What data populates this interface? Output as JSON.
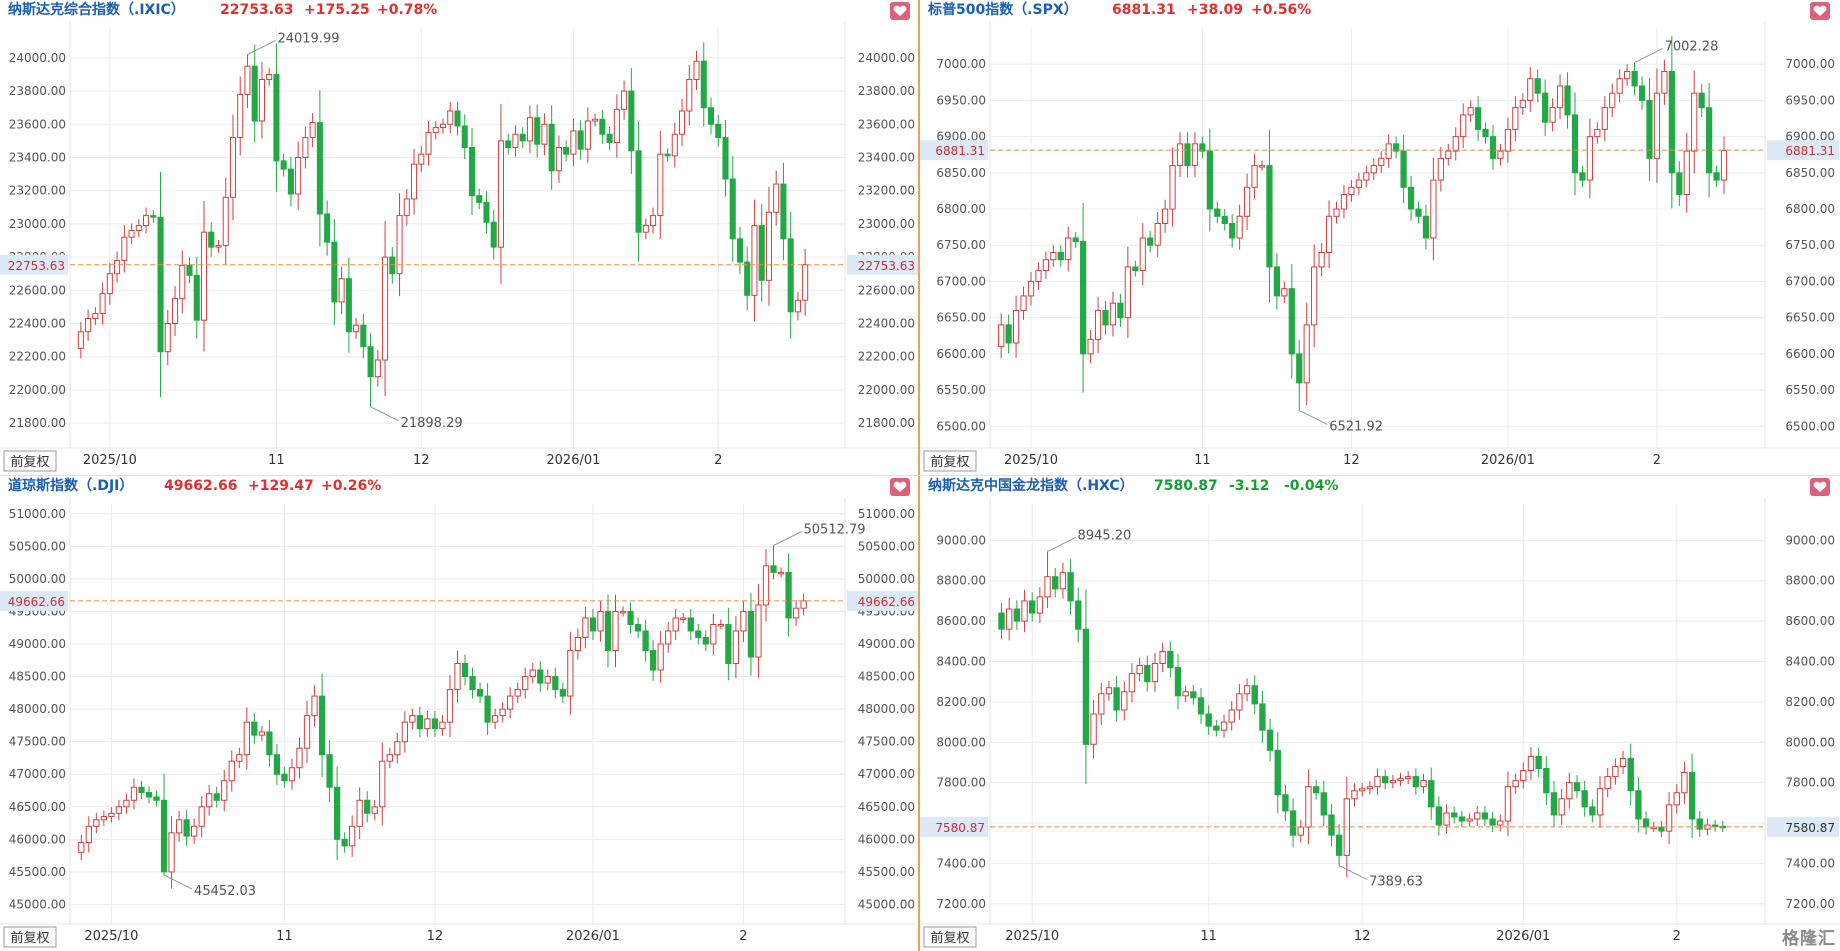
{
  "logo_text": "格隆汇",
  "fq_button": "前复权",
  "colors": {
    "up": "#e03030",
    "down": "#15a035",
    "up_body": "#d07070",
    "down_body": "#22a845",
    "grid": "#ececec",
    "ref_line": "#e09050",
    "name": "#1a5fb4"
  },
  "chart_data": [
    {
      "type": "candlestick",
      "name": "纳斯达克综合指数（.IXIC）",
      "last": "22753.63",
      "change": "+175.25",
      "change_pct": "+0.78%",
      "direction": "up",
      "ylim": [
        21650,
        24180
      ],
      "yticks": [
        21800,
        22000,
        22200,
        22400,
        22600,
        22800,
        23000,
        23200,
        23400,
        23600,
        23800,
        24000
      ],
      "ytick_labels": [
        "21800.00",
        "22000.00",
        "22200.00",
        "22400.00",
        "22600.00",
        "22800.00",
        "23000.00",
        "23200.00",
        "23400.00",
        "23600.00",
        "23800.00",
        "24000.00"
      ],
      "xticks": [
        {
          "label": "2025/10",
          "idx": 4
        },
        {
          "label": "11",
          "idx": 27
        },
        {
          "label": "12",
          "idx": 47
        },
        {
          "label": "2026/01",
          "idx": 68
        },
        {
          "label": "2",
          "idx": 88
        }
      ],
      "high_label": "24019.99",
      "high_idx": 23,
      "low_label": "21898.29",
      "low_idx": 40,
      "closes": [
        22350,
        22430,
        22460,
        22580,
        22700,
        22780,
        22920,
        22960,
        22990,
        23050,
        23040,
        22230,
        22400,
        22550,
        22750,
        22690,
        22420,
        22950,
        22860,
        22870,
        23160,
        23520,
        23780,
        23950,
        23620,
        23870,
        23900,
        23380,
        23330,
        23180,
        23400,
        23520,
        23610,
        23060,
        22890,
        22530,
        22670,
        22350,
        22390,
        22260,
        22080,
        22180,
        22800,
        22700,
        23050,
        23150,
        23360,
        23420,
        23550,
        23580,
        23600,
        23680,
        23590,
        23460,
        23170,
        23130,
        23010,
        22860,
        23500,
        23460,
        23540,
        23500,
        23640,
        23480,
        23600,
        23320,
        23460,
        23420,
        23560,
        23450,
        23620,
        23630,
        23540,
        23490,
        23690,
        23800,
        23440,
        22950,
        22990,
        23050,
        23420,
        23410,
        23540,
        23680,
        23870,
        23980,
        23700,
        23600,
        23520,
        23270,
        22910,
        22770,
        22570,
        22990,
        22660,
        23070,
        23240,
        22910,
        22470,
        22540,
        22754
      ],
      "opens": [
        22250,
        22350,
        22430,
        22460,
        22580,
        22700,
        22780,
        22920,
        22960,
        22990,
        23050,
        23040,
        22230,
        22400,
        22550,
        22750,
        22690,
        22420,
        22950,
        22860,
        22870,
        23160,
        23520,
        23780,
        23950,
        23620,
        23870,
        23900,
        23380,
        23330,
        23180,
        23400,
        23520,
        23610,
        23060,
        22890,
        22530,
        22670,
        22350,
        22390,
        22260,
        22080,
        22180,
        22800,
        22700,
        23050,
        23150,
        23360,
        23420,
        23550,
        23580,
        23600,
        23680,
        23590,
        23460,
        23170,
        23130,
        23010,
        22860,
        23500,
        23460,
        23540,
        23500,
        23640,
        23480,
        23600,
        23320,
        23460,
        23420,
        23560,
        23450,
        23620,
        23630,
        23540,
        23490,
        23690,
        23800,
        23440,
        22950,
        22990,
        23050,
        23420,
        23410,
        23540,
        23680,
        23870,
        23980,
        23700,
        23600,
        23520,
        23270,
        22910,
        22770,
        22570,
        22990,
        22660,
        23070,
        23240,
        22910,
        22470,
        22540
      ]
    },
    {
      "type": "candlestick",
      "name": "标普500指数（.SPX）",
      "last": "6881.31",
      "change": "+38.09",
      "change_pct": "+0.56%",
      "direction": "up",
      "ylim": [
        6470,
        7050
      ],
      "yticks": [
        6500,
        6550,
        6600,
        6650,
        6700,
        6750,
        6800,
        6850,
        6900,
        6950,
        7000
      ],
      "ytick_labels": [
        "6500.00",
        "6550.00",
        "6600.00",
        "6650.00",
        "6700.00",
        "6750.00",
        "6800.00",
        "6850.00",
        "6900.00",
        "6950.00",
        "7000.00"
      ],
      "xticks": [
        {
          "label": "2025/10",
          "idx": 4
        },
        {
          "label": "11",
          "idx": 27
        },
        {
          "label": "12",
          "idx": 47
        },
        {
          "label": "2026/01",
          "idx": 68
        },
        {
          "label": "2",
          "idx": 88
        }
      ],
      "high_label": "7002.28",
      "high_idx": 85,
      "low_label": "6521.92",
      "low_idx": 40,
      "closes": [
        6640,
        6615,
        6660,
        6680,
        6700,
        6715,
        6730,
        6740,
        6730,
        6760,
        6755,
        6600,
        6620,
        6660,
        6640,
        6670,
        6650,
        6720,
        6715,
        6760,
        6750,
        6780,
        6800,
        6860,
        6890,
        6860,
        6890,
        6880,
        6800,
        6790,
        6780,
        6760,
        6790,
        6830,
        6860,
        6860,
        6720,
        6680,
        6690,
        6600,
        6560,
        6640,
        6720,
        6740,
        6790,
        6800,
        6820,
        6830,
        6840,
        6850,
        6860,
        6870,
        6890,
        6880,
        6830,
        6800,
        6790,
        6760,
        6840,
        6870,
        6880,
        6900,
        6930,
        6940,
        6910,
        6900,
        6870,
        6880,
        6910,
        6940,
        6950,
        6980,
        6960,
        6920,
        6940,
        6970,
        6930,
        6850,
        6840,
        6900,
        6910,
        6940,
        6960,
        6980,
        6990,
        6970,
        6950,
        6870,
        6960,
        6990,
        6850,
        6820,
        6880,
        6960,
        6940,
        6850,
        6840,
        6881
      ],
      "opens": [
        6610,
        6640,
        6615,
        6660,
        6680,
        6700,
        6715,
        6730,
        6740,
        6730,
        6760,
        6755,
        6600,
        6620,
        6660,
        6640,
        6670,
        6650,
        6720,
        6715,
        6760,
        6750,
        6780,
        6800,
        6860,
        6890,
        6860,
        6890,
        6880,
        6800,
        6790,
        6780,
        6760,
        6790,
        6830,
        6860,
        6860,
        6720,
        6680,
        6690,
        6600,
        6560,
        6640,
        6720,
        6740,
        6790,
        6800,
        6820,
        6830,
        6840,
        6850,
        6860,
        6870,
        6890,
        6880,
        6830,
        6800,
        6790,
        6760,
        6840,
        6870,
        6880,
        6900,
        6930,
        6940,
        6910,
        6900,
        6870,
        6880,
        6910,
        6940,
        6950,
        6980,
        6960,
        6920,
        6940,
        6970,
        6930,
        6850,
        6840,
        6900,
        6910,
        6940,
        6960,
        6980,
        6990,
        6970,
        6950,
        6870,
        6960,
        6990,
        6850,
        6820,
        6880,
        6960,
        6940,
        6850,
        6840
      ]
    },
    {
      "type": "candlestick",
      "name": "道琼斯指数（.DJI）",
      "last": "49662.66",
      "change": "+129.47",
      "change_pct": "+0.26%",
      "direction": "up",
      "ylim": [
        44700,
        51150
      ],
      "yticks": [
        45000,
        45500,
        46000,
        46500,
        47000,
        47500,
        48000,
        48500,
        49000,
        49500,
        50000,
        50500,
        51000
      ],
      "ytick_labels": [
        "45000.00",
        "45500.00",
        "46000.00",
        "46500.00",
        "47000.00",
        "47500.00",
        "48000.00",
        "48500.00",
        "49000.00",
        "49500.00",
        "50000.00",
        "50500.00",
        "51000.00"
      ],
      "xticks": [
        {
          "label": "2025/10",
          "idx": 4
        },
        {
          "label": "11",
          "idx": 27
        },
        {
          "label": "12",
          "idx": 47
        },
        {
          "label": "2026/01",
          "idx": 68
        },
        {
          "label": "2",
          "idx": 88
        }
      ],
      "high_label": "50512.79",
      "high_idx": 92,
      "low_label": "45452.03",
      "low_idx": 11,
      "closes": [
        45950,
        46200,
        46300,
        46350,
        46400,
        46500,
        46600,
        46800,
        46720,
        46650,
        46600,
        45500,
        46100,
        46300,
        46050,
        46200,
        46500,
        46700,
        46600,
        46900,
        47200,
        47300,
        47800,
        47600,
        47650,
        47300,
        47000,
        46900,
        47100,
        47400,
        47900,
        48200,
        47300,
        46800,
        46000,
        45900,
        46200,
        46600,
        46400,
        46500,
        47200,
        47300,
        47500,
        47800,
        47900,
        47700,
        47850,
        47700,
        47800,
        48300,
        48700,
        48500,
        48300,
        48200,
        47800,
        47900,
        48000,
        48200,
        48300,
        48500,
        48600,
        48400,
        48500,
        48300,
        48200,
        48900,
        49100,
        49400,
        49200,
        49500,
        48900,
        49500,
        49500,
        49300,
        49200,
        48900,
        48600,
        49000,
        49200,
        49400,
        49400,
        49200,
        49100,
        49000,
        49300,
        49300,
        48700,
        49200,
        49500,
        48800,
        49600,
        50200,
        50100,
        50100,
        49400,
        49550,
        49663
      ],
      "opens": [
        45800,
        45950,
        46200,
        46300,
        46350,
        46400,
        46500,
        46600,
        46800,
        46720,
        46650,
        46600,
        45500,
        46100,
        46300,
        46050,
        46200,
        46500,
        46700,
        46600,
        46900,
        47200,
        47300,
        47800,
        47600,
        47650,
        47300,
        47000,
        46900,
        47100,
        47400,
        47900,
        48200,
        47300,
        46800,
        46000,
        45900,
        46200,
        46600,
        46400,
        46500,
        47200,
        47300,
        47500,
        47800,
        47900,
        47700,
        47850,
        47700,
        47800,
        48300,
        48700,
        48500,
        48300,
        48200,
        47800,
        47900,
        48000,
        48200,
        48300,
        48500,
        48600,
        48400,
        48500,
        48300,
        48200,
        48900,
        49100,
        49400,
        49200,
        49500,
        48900,
        49500,
        49500,
        49300,
        49200,
        48900,
        48600,
        49000,
        49200,
        49400,
        49400,
        49200,
        49100,
        49000,
        49300,
        49300,
        48700,
        49200,
        49500,
        48800,
        49600,
        50200,
        50100,
        50100,
        49400,
        49550
      ]
    },
    {
      "type": "candlestick",
      "name": "纳斯达克中国金龙指数（.HXC）",
      "last": "7580.87",
      "change": "-3.12",
      "change_pct": "-0.04%",
      "direction": "down",
      "ylim": [
        7100,
        9180
      ],
      "yticks": [
        7200,
        7400,
        7600,
        7800,
        8000,
        8200,
        8400,
        8600,
        8800,
        9000
      ],
      "ytick_labels": [
        "7200.00",
        "7400.00",
        "7600.00",
        "7800.00",
        "8000.00",
        "8200.00",
        "8400.00",
        "8600.00",
        "8800.00",
        "9000.00"
      ],
      "xticks": [
        {
          "label": "2025/10",
          "idx": 4
        },
        {
          "label": "11",
          "idx": 27
        },
        {
          "label": "12",
          "idx": 47
        },
        {
          "label": "2026/01",
          "idx": 68
        },
        {
          "label": "2",
          "idx": 88
        }
      ],
      "high_label": "8945.20",
      "high_idx": 6,
      "low_label": "7389.63",
      "low_idx": 44,
      "closes": [
        8560,
        8660,
        8600,
        8700,
        8640,
        8720,
        8820,
        8760,
        8840,
        8700,
        8560,
        7990,
        8140,
        8240,
        8270,
        8160,
        8250,
        8340,
        8380,
        8300,
        8390,
        8450,
        8370,
        8230,
        8250,
        8220,
        8140,
        8080,
        8060,
        8100,
        8160,
        8240,
        8280,
        8190,
        8060,
        7960,
        7740,
        7660,
        7540,
        7580,
        7780,
        7750,
        7640,
        7540,
        7440,
        7720,
        7760,
        7770,
        7780,
        7830,
        7800,
        7810,
        7820,
        7830,
        7780,
        7810,
        7680,
        7590,
        7650,
        7630,
        7610,
        7620,
        7650,
        7620,
        7590,
        7610,
        7780,
        7810,
        7860,
        7930,
        7870,
        7750,
        7640,
        7720,
        7800,
        7760,
        7680,
        7640,
        7770,
        7830,
        7880,
        7920,
        7760,
        7620,
        7580,
        7580,
        7560,
        7690,
        7750,
        7850,
        7620,
        7570,
        7590,
        7584,
        7581
      ],
      "opens": [
        8640,
        8560,
        8660,
        8600,
        8700,
        8640,
        8720,
        8820,
        8760,
        8840,
        8700,
        8560,
        7990,
        8140,
        8240,
        8270,
        8160,
        8250,
        8340,
        8380,
        8300,
        8390,
        8450,
        8370,
        8230,
        8250,
        8220,
        8140,
        8080,
        8060,
        8100,
        8160,
        8240,
        8280,
        8190,
        8060,
        7960,
        7740,
        7660,
        7540,
        7580,
        7780,
        7750,
        7640,
        7540,
        7440,
        7720,
        7760,
        7770,
        7780,
        7830,
        7800,
        7810,
        7820,
        7830,
        7780,
        7810,
        7680,
        7590,
        7650,
        7630,
        7610,
        7620,
        7650,
        7620,
        7590,
        7610,
        7780,
        7810,
        7860,
        7930,
        7870,
        7750,
        7640,
        7720,
        7800,
        7760,
        7680,
        7640,
        7770,
        7830,
        7880,
        7920,
        7760,
        7620,
        7580,
        7580,
        7560,
        7690,
        7750,
        7850,
        7620,
        7570,
        7590,
        7584
      ]
    }
  ]
}
